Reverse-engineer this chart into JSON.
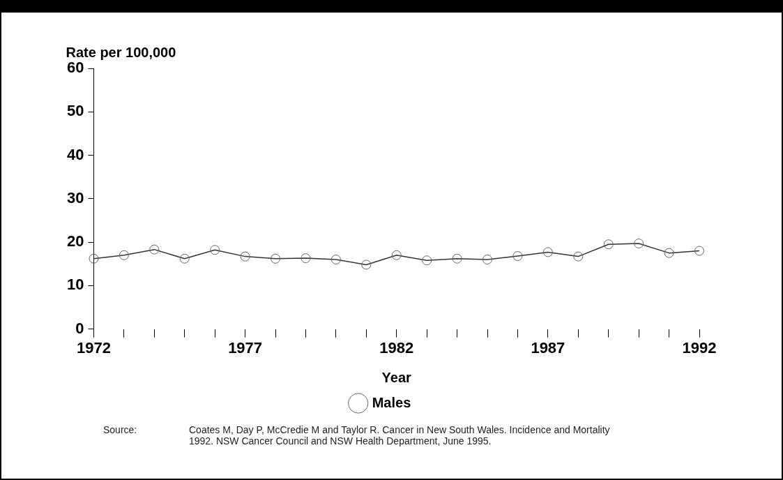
{
  "chart_data": {
    "type": "line",
    "ylabel": "Rate per 100,000",
    "xlabel": "Year",
    "x": [
      1972,
      1973,
      1974,
      1975,
      1976,
      1977,
      1978,
      1979,
      1980,
      1981,
      1982,
      1983,
      1984,
      1985,
      1986,
      1987,
      1988,
      1989,
      1990,
      1991,
      1992
    ],
    "series": [
      {
        "name": "Males",
        "color": "#333333",
        "values": [
          16.2,
          17.0,
          18.3,
          16.2,
          18.2,
          16.7,
          16.2,
          16.3,
          16.0,
          14.8,
          17.0,
          15.8,
          16.2,
          16.0,
          16.8,
          17.7,
          16.7,
          19.5,
          19.7,
          17.5,
          18.0
        ]
      }
    ],
    "xlim": [
      1972,
      1992
    ],
    "xticks": [
      1972,
      {
        "value": 1973,
        "label": null
      },
      {
        "value": 1974,
        "label": null
      },
      {
        "value": 1975,
        "label": null
      },
      {
        "value": 1976,
        "label": null
      },
      1977,
      {
        "value": 1978,
        "label": null
      },
      {
        "value": 1979,
        "label": null
      },
      {
        "value": 1980,
        "label": null
      },
      {
        "value": 1981,
        "label": null
      },
      1982,
      {
        "value": 1983,
        "label": null
      },
      {
        "value": 1984,
        "label": null
      },
      {
        "value": 1985,
        "label": null
      },
      {
        "value": 1986,
        "label": null
      },
      1987,
      {
        "value": 1988,
        "label": null
      },
      {
        "value": 1989,
        "label": null
      },
      {
        "value": 1990,
        "label": null
      },
      {
        "value": 1991,
        "label": null
      },
      1992
    ],
    "ylim": [
      0,
      60
    ],
    "yticks": [
      0,
      10,
      20,
      30,
      40,
      50,
      60
    ],
    "grid": false,
    "legend": "bottom",
    "marker": "circle",
    "line_style": "solid",
    "annotations": [
      "Source:\tCoates M, Day P, McCredie M and Taylor R. Cancer in New South Wales. Incidence and Mortality 1992. NSW Cancer Council and NSW Health Department, June 1995."
    ]
  }
}
